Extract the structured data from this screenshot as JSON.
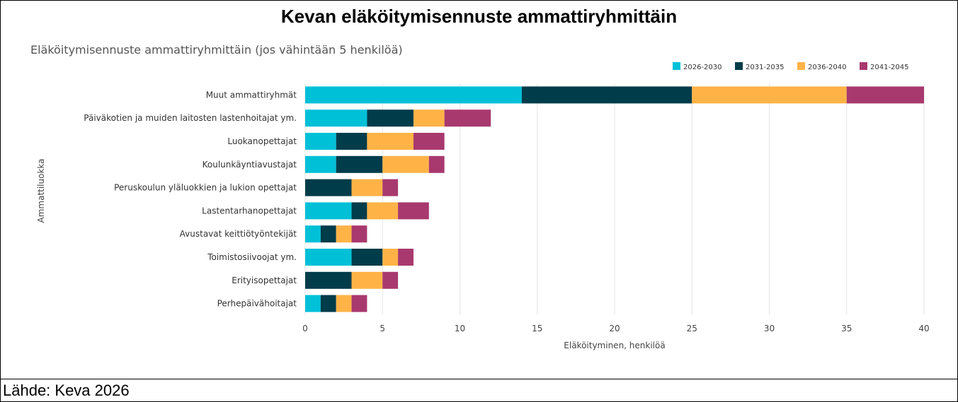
{
  "page_title": "Kevan eläköitymisennuste ammattiryhmittäin",
  "source": "Lähde: Keva 2026",
  "chart_data": {
    "type": "bar",
    "orientation": "horizontal",
    "stacked": true,
    "title": "Eläköitymisennuste ammattiryhmittäin (jos vähintään 5 henkilöä)",
    "xlabel": "Eläköityminen, henkilöä",
    "ylabel": "Ammattiluokka",
    "xlim": [
      0,
      40
    ],
    "xticks": [
      0,
      5,
      10,
      15,
      20,
      25,
      30,
      35,
      40
    ],
    "grid": true,
    "legend_position": "top-right",
    "categories": [
      "Muut ammattiryhmät",
      "Päiväkotien ja muiden laitosten lastenhoitajat ym.",
      "Luokanopettajat",
      "Koulunkäyntiavustajat",
      "Peruskoulun yläluokkien ja lukion opettajat",
      "Lastentarhanopettajat",
      "Avustavat keittiötyöntekijät",
      "Toimistosiivoojat ym.",
      "Erityisopettajat",
      "Perhepäivähoitajat"
    ],
    "series": [
      {
        "name": "2026-2030",
        "color": "#00c0d8",
        "values": [
          14,
          4,
          2,
          2,
          0,
          3,
          1,
          3,
          0,
          1
        ]
      },
      {
        "name": "2031-2035",
        "color": "#003c4a",
        "values": [
          11,
          3,
          2,
          3,
          3,
          1,
          1,
          2,
          3,
          1
        ]
      },
      {
        "name": "2036-2040",
        "color": "#ffb347",
        "values": [
          10,
          2,
          3,
          3,
          2,
          2,
          1,
          1,
          2,
          1
        ]
      },
      {
        "name": "2041-2045",
        "color": "#a8396e",
        "values": [
          5,
          3,
          2,
          1,
          1,
          2,
          1,
          1,
          1,
          1
        ]
      }
    ]
  }
}
